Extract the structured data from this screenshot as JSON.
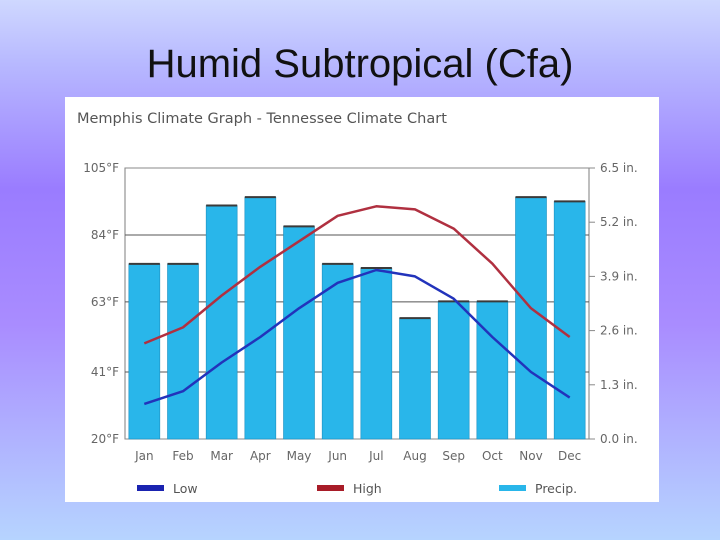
{
  "slide": {
    "title": "Humid Subtropical (Cfa)"
  },
  "chart_data": {
    "type": "bar+line",
    "title": "Memphis Climate Graph - Tennessee Climate Chart",
    "categories": [
      "Jan",
      "Feb",
      "Mar",
      "Apr",
      "May",
      "Jun",
      "Jul",
      "Aug",
      "Sep",
      "Oct",
      "Nov",
      "Dec"
    ],
    "left_axis": {
      "unit": "°F",
      "range": [
        20,
        105
      ],
      "ticks": [
        "105°F",
        "84°F",
        "63°F",
        "41°F",
        "20°F"
      ],
      "tick_values": [
        105,
        84,
        63,
        41,
        20
      ]
    },
    "right_axis": {
      "unit": "in.",
      "range": [
        0,
        6.5
      ],
      "ticks": [
        "6.5 in.",
        "5.2 in.",
        "3.9 in.",
        "2.6 in.",
        "1.3 in.",
        "0.0 in."
      ],
      "tick_values": [
        6.5,
        5.2,
        3.9,
        2.6,
        1.3,
        0.0
      ]
    },
    "series": [
      {
        "name": "Precip.",
        "type": "bar",
        "axis": "right",
        "color": "#29b6ea",
        "values": [
          4.2,
          4.2,
          5.6,
          5.8,
          5.1,
          4.2,
          4.1,
          2.9,
          3.3,
          3.3,
          5.8,
          5.7
        ]
      },
      {
        "name": "High",
        "type": "line",
        "axis": "left",
        "color": "#b03040",
        "values": [
          50,
          55,
          65,
          74,
          82,
          90,
          93,
          92,
          86,
          75,
          61,
          52
        ]
      },
      {
        "name": "Low",
        "type": "line",
        "axis": "left",
        "color": "#2233bb",
        "values": [
          31,
          35,
          44,
          52,
          61,
          69,
          73,
          71,
          64,
          52,
          41,
          33
        ]
      }
    ],
    "legend": [
      {
        "name": "Low",
        "color": "#1a23b0"
      },
      {
        "name": "High",
        "color": "#a81c28"
      },
      {
        "name": "Precip.",
        "color": "#29b6ea"
      }
    ],
    "grid": true
  }
}
